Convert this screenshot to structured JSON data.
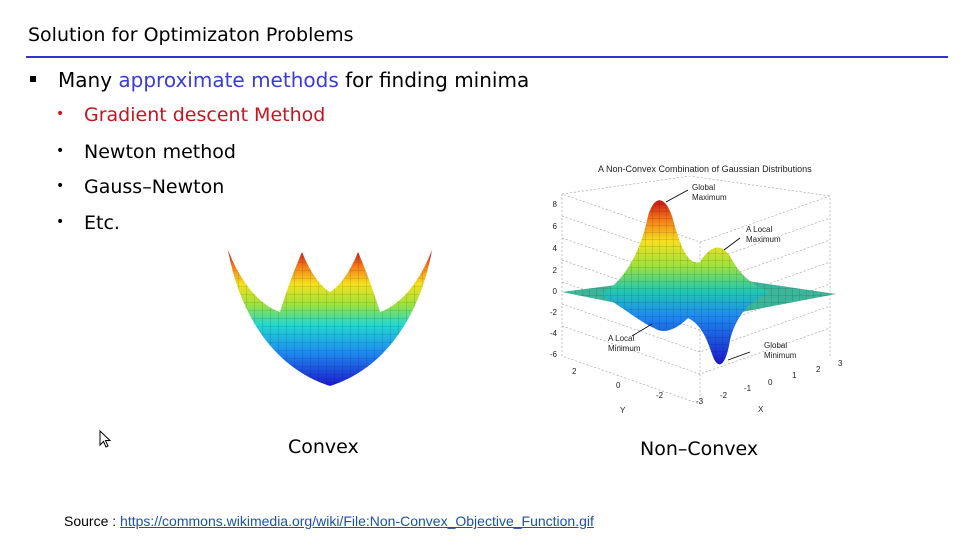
{
  "slide": {
    "title": "Solution for Optimizaton Problems",
    "main_bullet": {
      "prefix": "Many ",
      "highlight": "approximate methods",
      "suffix": " for finding minima"
    },
    "sub_bullets": [
      "Gradient descent Method",
      "Newton method",
      "Gauss–Newton",
      "Etc."
    ],
    "captions": {
      "convex": "Convex",
      "non_convex": "Non–Convex"
    },
    "source_label": "Source : ",
    "source_url": "https://commons.wikimedia.org/wiki/File:Non-Convex_Objective_Function.gif"
  },
  "figure": {
    "title": "A Non-Convex Combination of Gaussian Distributions",
    "z_ticks": [
      "8",
      "6",
      "4",
      "2",
      "0",
      "-2",
      "-4",
      "-6"
    ],
    "y_ticks": [
      "2",
      "0",
      "-2"
    ],
    "x_ticks": [
      "-3",
      "-2",
      "-1",
      "0",
      "1",
      "2",
      "3"
    ],
    "y_label": "Y",
    "x_label": "X",
    "annotations": {
      "global_max": [
        "Global",
        "Maximum"
      ],
      "local_max": [
        "A Local",
        "Maximum"
      ],
      "local_min": [
        "A Local",
        "Minimum"
      ],
      "global_min": [
        "Global",
        "Minimum"
      ]
    }
  },
  "colors": {
    "accent": "#3b3bdc",
    "highlight_red": "#c8141e",
    "rule": "#3333cc",
    "link": "#1f4fb4"
  }
}
